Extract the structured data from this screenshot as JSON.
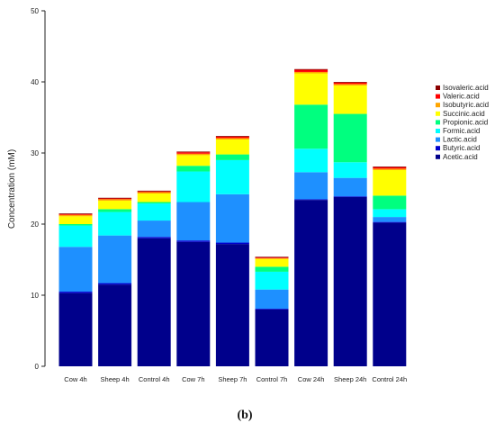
{
  "figure": {
    "panel_label": "(b)"
  },
  "chart_data": {
    "type": "bar",
    "stacked": true,
    "title": "",
    "xlabel": "",
    "ylabel": "Concentration (mM)",
    "ylim": [
      0,
      50
    ],
    "yticks": [
      0,
      10,
      20,
      30,
      40,
      50
    ],
    "legend_position": "right",
    "categories": [
      "Cow 4h",
      "Sheep 4h",
      "Control 4h",
      "Cow 7h",
      "Sheep 7h",
      "Control 7h",
      "Cow 24h",
      "Sheep  24h",
      "Control  24h"
    ],
    "series": [
      {
        "name": "Acetic.acid",
        "color": "#00008B",
        "values": [
          10.3,
          11.5,
          18.0,
          17.5,
          17.2,
          8.0,
          23.4,
          23.8,
          20.2
        ]
      },
      {
        "name": "Butyric.acid",
        "color": "#0000CD",
        "values": [
          0.2,
          0.2,
          0.2,
          0.2,
          0.2,
          0.1,
          0.1,
          0.1,
          0.1
        ]
      },
      {
        "name": "Lactic.acid",
        "color": "#1E90FF",
        "values": [
          6.3,
          6.7,
          2.3,
          5.4,
          6.8,
          2.7,
          3.8,
          2.6,
          0.7
        ]
      },
      {
        "name": "Formic.acid",
        "color": "#00FFFF",
        "values": [
          3.0,
          3.3,
          2.4,
          4.3,
          4.8,
          2.5,
          3.3,
          2.2,
          1.1
        ]
      },
      {
        "name": "Propionic.acid",
        "color": "#00FF7F",
        "values": [
          0.2,
          0.4,
          0.2,
          0.8,
          0.8,
          0.7,
          6.2,
          6.8,
          1.9
        ]
      },
      {
        "name": "Succinic.acid",
        "color": "#FFFF00",
        "values": [
          1.1,
          1.2,
          1.2,
          1.5,
          2.1,
          1.1,
          4.4,
          4.0,
          3.6
        ]
      },
      {
        "name": "Isobutyric.acid",
        "color": "#FFA500",
        "values": [
          0.2,
          0.2,
          0.2,
          0.2,
          0.2,
          0.1,
          0.2,
          0.2,
          0.2
        ]
      },
      {
        "name": "Valeric.acid",
        "color": "#FF0000",
        "values": [
          0.1,
          0.1,
          0.1,
          0.2,
          0.2,
          0.1,
          0.3,
          0.2,
          0.2
        ]
      },
      {
        "name": "Isovaleric.acid",
        "color": "#8B0000",
        "values": [
          0.1,
          0.1,
          0.1,
          0.1,
          0.1,
          0.1,
          0.1,
          0.1,
          0.1
        ]
      }
    ],
    "legend_order": [
      "Isovaleric.acid",
      "Valeric.acid",
      "Isobutyric.acid",
      "Succinic.acid",
      "Propionic.acid",
      "Formic.acid",
      "Lactic.acid",
      "Butyric.acid",
      "Acetic.acid"
    ]
  }
}
